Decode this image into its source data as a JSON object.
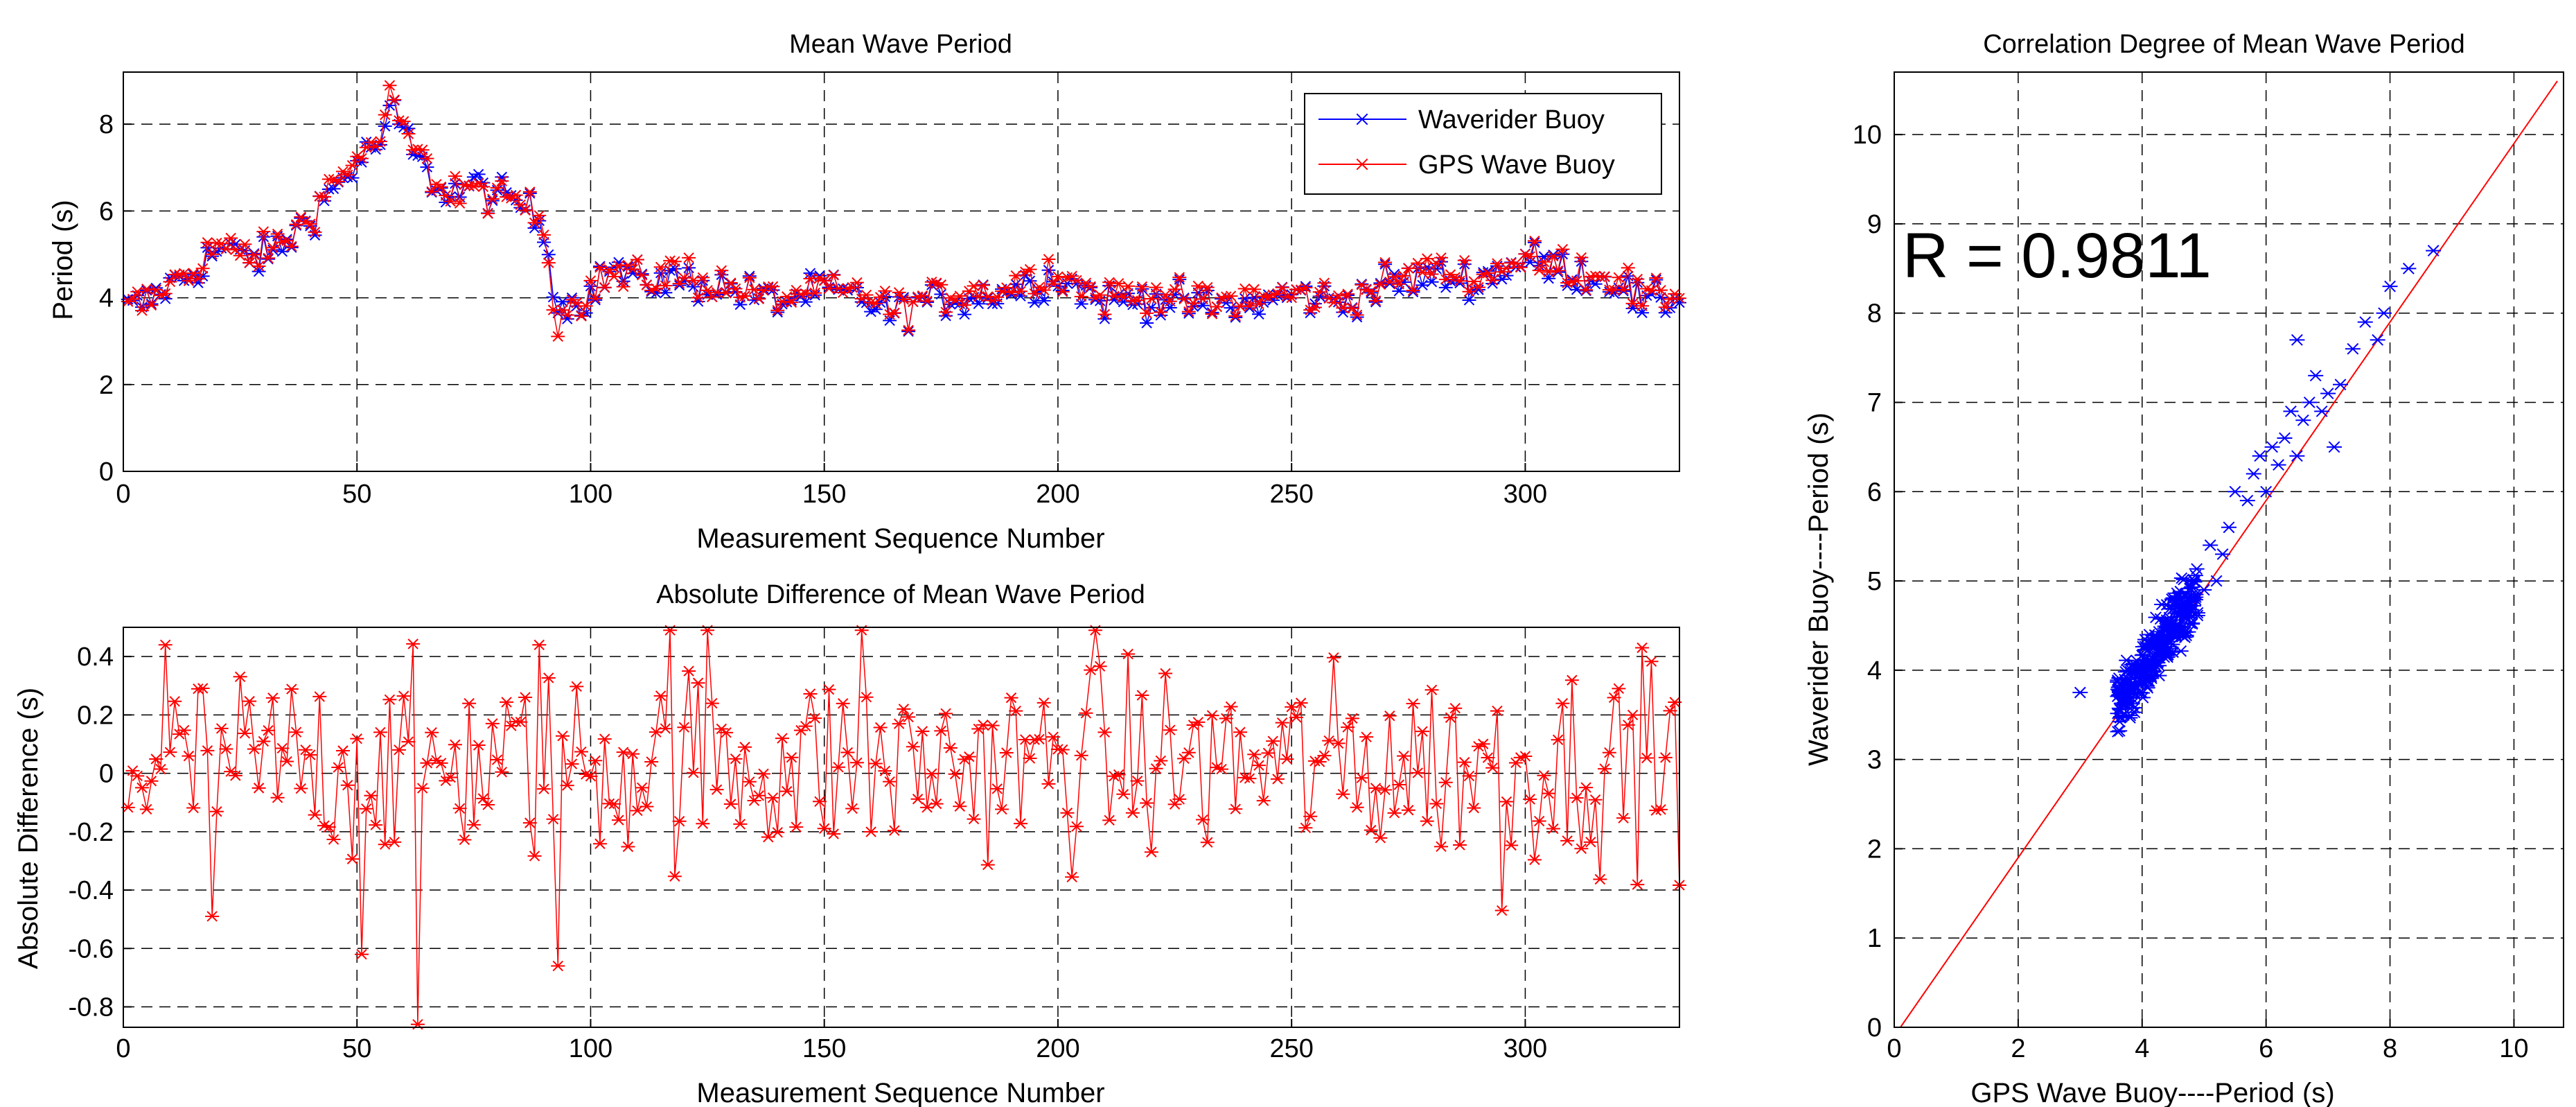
{
  "chart_data": [
    {
      "type": "line",
      "title": "Mean Wave Period",
      "xlabel": "Measurement Sequence Number",
      "ylabel": "Period (s)",
      "xlim": [
        0,
        333
      ],
      "ylim": [
        0,
        9.2
      ],
      "xticks": [
        "0",
        "50",
        "100",
        "150",
        "200",
        "250",
        "300"
      ],
      "yticks": [
        "0",
        "2",
        "4",
        "6",
        "8"
      ],
      "grid": true,
      "legend_position": "top-right",
      "series": [
        {
          "name": "Waverider Buoy",
          "color": "#0000ff",
          "keyframes_x": [
            0,
            5,
            10,
            15,
            20,
            25,
            30,
            35,
            40,
            45,
            50,
            55,
            58,
            60,
            65,
            70,
            75,
            80,
            85,
            90,
            93,
            95,
            100,
            105,
            110,
            120,
            130,
            140,
            150,
            160,
            165,
            170,
            180,
            190,
            200,
            210,
            220,
            230,
            240,
            250,
            260,
            270,
            280,
            290,
            300,
            310,
            320,
            325,
            333
          ],
          "keyframes_y": [
            3.7,
            3.9,
            4.3,
            4.6,
            5.1,
            5.0,
            4.9,
            5.3,
            5.9,
            6.5,
            7.1,
            7.6,
            8.3,
            7.8,
            6.8,
            6.4,
            6.6,
            6.3,
            6.2,
            5.6,
            3.9,
            3.8,
            4.1,
            4.7,
            4.4,
            4.4,
            4.2,
            3.9,
            4.2,
            3.9,
            3.6,
            3.9,
            4.0,
            4.2,
            4.5,
            3.9,
            4.0,
            3.8,
            3.8,
            4.1,
            3.9,
            4.3,
            4.5,
            4.4,
            4.9,
            4.6,
            4.4,
            3.8,
            4.0
          ],
          "noise_amplitude": 0.22
        },
        {
          "name": "GPS Wave Buoy",
          "color": "#ff0000",
          "keyframes_x": [
            0,
            5,
            10,
            15,
            20,
            25,
            30,
            35,
            40,
            45,
            50,
            55,
            57,
            60,
            65,
            70,
            75,
            80,
            85,
            90,
            93,
            95,
            100,
            105,
            110,
            120,
            130,
            140,
            150,
            160,
            165,
            170,
            180,
            190,
            200,
            210,
            220,
            230,
            240,
            250,
            260,
            270,
            280,
            290,
            300,
            310,
            320,
            325,
            333
          ],
          "keyframes_y": [
            3.8,
            3.9,
            4.3,
            4.6,
            5.2,
            5.0,
            4.9,
            5.4,
            5.9,
            6.7,
            7.2,
            7.7,
            8.6,
            7.9,
            6.9,
            6.4,
            6.5,
            6.3,
            6.3,
            5.6,
            3.4,
            3.8,
            4.2,
            4.6,
            4.5,
            4.5,
            4.2,
            4.0,
            4.2,
            4.0,
            3.7,
            4.0,
            4.1,
            4.3,
            4.6,
            4.0,
            4.1,
            3.9,
            3.9,
            4.1,
            3.9,
            4.3,
            4.6,
            4.5,
            4.9,
            4.6,
            4.5,
            3.9,
            4.1
          ],
          "noise_amplitude": 0.2
        }
      ]
    },
    {
      "type": "line",
      "title": "Absolute Difference of Mean Wave Period",
      "xlabel": "Measurement Sequence Number",
      "ylabel": "Absolute Difference (s)",
      "xlim": [
        0,
        333
      ],
      "ylim": [
        -0.87,
        0.5
      ],
      "xticks": [
        "0",
        "50",
        "100",
        "150",
        "200",
        "250",
        "300"
      ],
      "yticks": [
        "0.4",
        "0.2",
        "0",
        "-0.2",
        "-0.4",
        "-0.6",
        "-0.8"
      ],
      "grid": true,
      "series": [
        {
          "name": "GPS Wave Buoy - Waverider Buoy",
          "color": "#ff0000",
          "count": 333,
          "mean": 0.03,
          "spread": 0.22,
          "extremes": [
            [
              9,
              0.44
            ],
            [
              19,
              -0.49
            ],
            [
              51,
              -0.62
            ],
            [
              63,
              -0.86
            ],
            [
              89,
              0.44
            ],
            [
              93,
              -0.66
            ],
            [
              117,
              0.49
            ],
            [
              125,
              0.49
            ],
            [
              158,
              0.49
            ],
            [
              208,
              0.49
            ],
            [
              295,
              -0.47
            ],
            [
              325,
              0.43
            ]
          ]
        }
      ]
    },
    {
      "type": "scatter",
      "title": "Correlation Degree of Mean Wave Period",
      "xlabel": "GPS Wave Buoy----Period (s)",
      "ylabel": "Waverider Buoy----Period (s)",
      "xlim": [
        0,
        10.8
      ],
      "ylim": [
        0,
        10.7
      ],
      "xticks": [
        "0",
        "2",
        "4",
        "6",
        "8",
        "10"
      ],
      "yticks": [
        "0",
        "1",
        "2",
        "3",
        "4",
        "5",
        "6",
        "7",
        "8",
        "9",
        "10"
      ],
      "grid": true,
      "annotation": "R = 0.9811",
      "fit_line": {
        "x": [
          0.1,
          10.7
        ],
        "y": [
          0.0,
          10.6
        ],
        "color": "#ff0000"
      },
      "series": [
        {
          "name": "points",
          "color": "#0000ff",
          "cluster": {
            "count": 300,
            "x_range": [
              3.6,
              4.9
            ],
            "mean_offset": 0.0,
            "spread": 0.16
          },
          "points": [
            [
              3.0,
              3.75
            ],
            [
              5.0,
              4.9
            ],
            [
              5.1,
              5.4
            ],
            [
              5.2,
              5.0
            ],
            [
              5.3,
              5.3
            ],
            [
              5.4,
              5.6
            ],
            [
              5.5,
              6.0
            ],
            [
              5.7,
              5.9
            ],
            [
              5.8,
              6.2
            ],
            [
              5.9,
              6.4
            ],
            [
              6.0,
              6.0
            ],
            [
              6.1,
              6.5
            ],
            [
              6.2,
              6.3
            ],
            [
              6.3,
              6.6
            ],
            [
              6.4,
              6.9
            ],
            [
              6.5,
              6.4
            ],
            [
              6.6,
              6.8
            ],
            [
              6.7,
              7.0
            ],
            [
              6.8,
              7.3
            ],
            [
              6.9,
              6.9
            ],
            [
              7.0,
              7.1
            ],
            [
              7.1,
              6.5
            ],
            [
              7.2,
              7.2
            ],
            [
              7.4,
              7.6
            ],
            [
              7.6,
              7.9
            ],
            [
              7.8,
              7.7
            ],
            [
              7.9,
              8.0
            ],
            [
              8.0,
              8.3
            ],
            [
              8.3,
              8.5
            ],
            [
              8.7,
              8.7
            ],
            [
              6.5,
              7.7
            ]
          ]
        }
      ]
    }
  ],
  "annotations": {
    "r_value": "R = 0.9811"
  }
}
